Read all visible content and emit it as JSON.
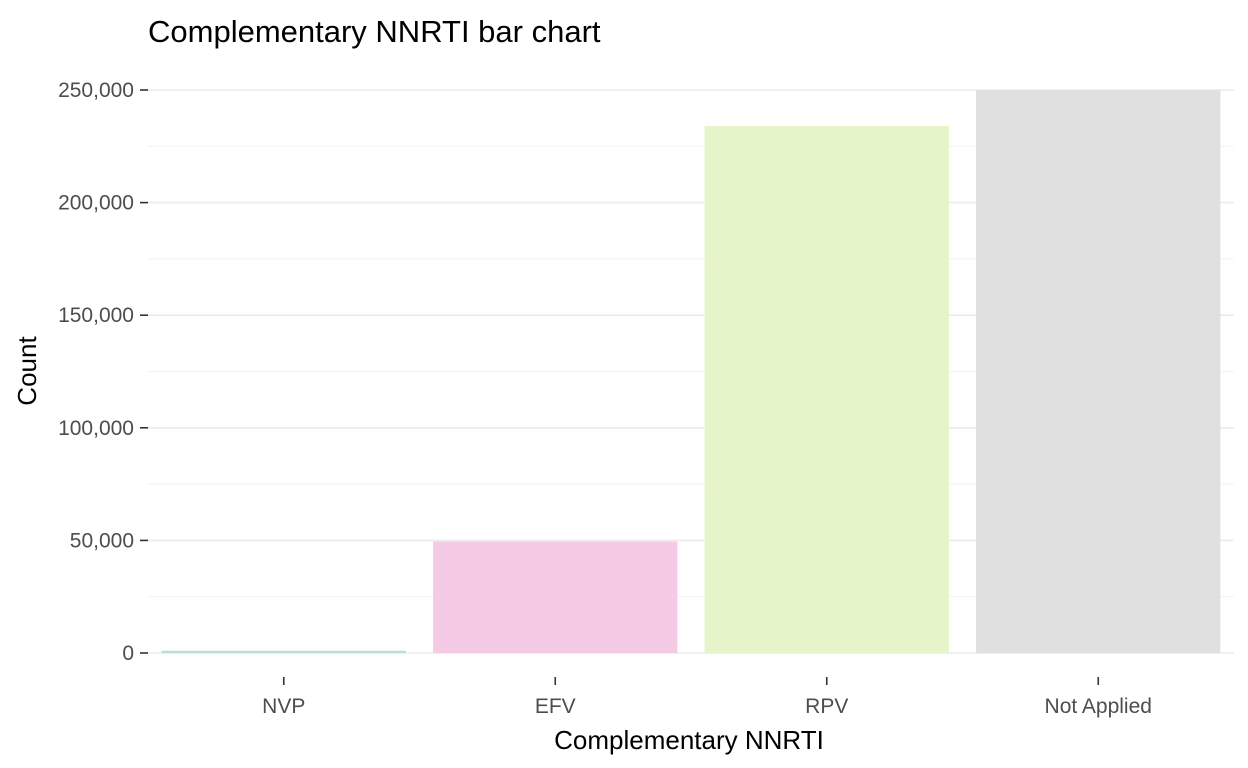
{
  "chart_data": {
    "type": "bar",
    "title": "Complementary NNRTI bar chart",
    "xlabel": "Complementary NNRTI",
    "ylabel": "Count",
    "categories": [
      "NVP",
      "EFV",
      "RPV",
      "Not Applied"
    ],
    "values": [
      1000,
      49500,
      234000,
      250000
    ],
    "colors": [
      "#b3e2cd",
      "#f4cae4",
      "#e6f5c9",
      "#e0e0e0"
    ],
    "ylim": [
      0,
      250000
    ],
    "y_ticks": [
      0,
      50000,
      100000,
      150000,
      200000,
      250000
    ],
    "y_tick_labels": [
      "0",
      "50,000",
      "100,000",
      "150,000",
      "200,000",
      "250,000"
    ],
    "grid": true,
    "legend": "none"
  }
}
